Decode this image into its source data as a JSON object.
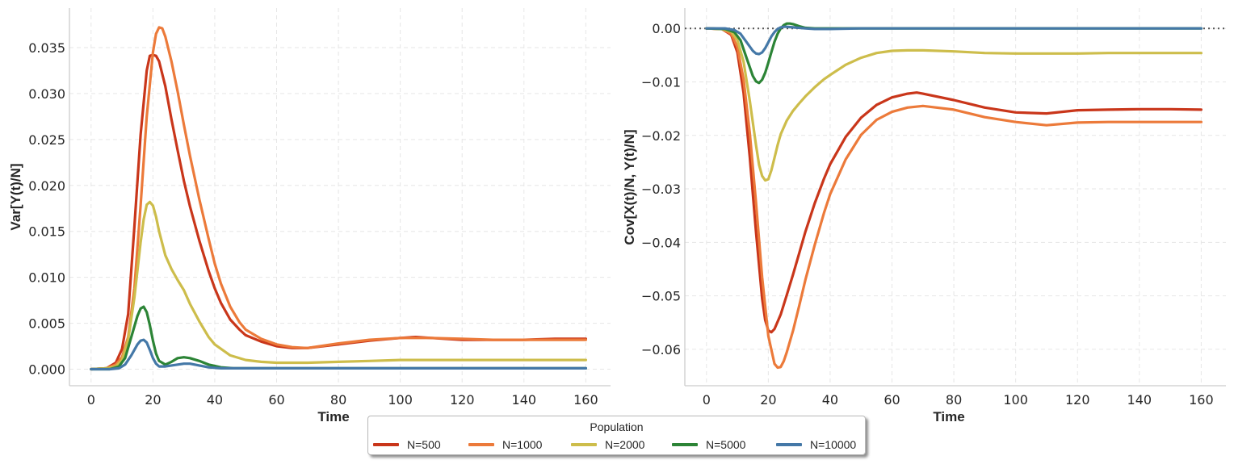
{
  "legend": {
    "title": "Population",
    "entries": [
      {
        "label": "N=500",
        "color": "#c9361a"
      },
      {
        "label": "N=1000",
        "color": "#ec7a3a"
      },
      {
        "label": "N=2000",
        "color": "#cdbd4b"
      },
      {
        "label": "N=5000",
        "color": "#2c8436"
      },
      {
        "label": "N=10000",
        "color": "#4478a7"
      }
    ]
  },
  "chart_data": [
    {
      "type": "line",
      "title": "",
      "xlabel": "Time",
      "ylabel": "Var[Y(t)/N]",
      "xlim": [
        -7,
        168
      ],
      "ylim": [
        -0.0018,
        0.0393
      ],
      "xticks": [
        0,
        20,
        40,
        60,
        80,
        100,
        120,
        140,
        160
      ],
      "xtick_labels": [
        "0",
        "20",
        "40",
        "60",
        "80",
        "100",
        "120",
        "140",
        "160"
      ],
      "yticks": [
        0,
        0.005,
        0.01,
        0.015,
        0.02,
        0.025,
        0.03,
        0.035
      ],
      "ytick_labels": [
        "0.000",
        "0.005",
        "0.010",
        "0.015",
        "0.020",
        "0.025",
        "0.030",
        "0.035"
      ],
      "grid": true,
      "series": [
        {
          "name": "N=500",
          "color": "#c9361a",
          "x": [
            0,
            5,
            8,
            10,
            12,
            14,
            16,
            18,
            19,
            20,
            21,
            22,
            24,
            26,
            28,
            30,
            32,
            35,
            38,
            40,
            42,
            45,
            48,
            50,
            55,
            60,
            65,
            70,
            80,
            90,
            100,
            105,
            110,
            120,
            130,
            140,
            150,
            160
          ],
          "y": [
            0,
            0.0001,
            0.0007,
            0.0022,
            0.006,
            0.0155,
            0.0255,
            0.0325,
            0.0341,
            0.0342,
            0.0341,
            0.0335,
            0.0308,
            0.0272,
            0.0238,
            0.0205,
            0.0177,
            0.014,
            0.0107,
            0.0088,
            0.0072,
            0.0054,
            0.0043,
            0.0037,
            0.003,
            0.0025,
            0.0023,
            0.0023,
            0.0027,
            0.0031,
            0.0034,
            0.0035,
            0.0034,
            0.0032,
            0.0032,
            0.0032,
            0.0033,
            0.0033
          ]
        },
        {
          "name": "N=1000",
          "color": "#ec7a3a",
          "x": [
            0,
            5,
            8,
            10,
            12,
            14,
            16,
            18,
            20,
            21,
            22,
            23,
            24,
            26,
            28,
            30,
            32,
            35,
            38,
            40,
            42,
            45,
            48,
            50,
            55,
            60,
            65,
            70,
            80,
            90,
            100,
            110,
            120,
            130,
            140,
            150,
            160
          ],
          "y": [
            0,
            0.0001,
            0.0005,
            0.0013,
            0.0035,
            0.0088,
            0.0178,
            0.0275,
            0.0345,
            0.0365,
            0.0372,
            0.0371,
            0.0362,
            0.0335,
            0.0302,
            0.0266,
            0.0232,
            0.0185,
            0.0142,
            0.0115,
            0.0093,
            0.0068,
            0.0051,
            0.0043,
            0.0033,
            0.0027,
            0.0024,
            0.0023,
            0.0028,
            0.0032,
            0.0034,
            0.0034,
            0.0033,
            0.0032,
            0.0032,
            0.0032,
            0.0032
          ]
        },
        {
          "name": "N=2000",
          "color": "#cdbd4b",
          "x": [
            0,
            5,
            8,
            10,
            12,
            14,
            16,
            17,
            18,
            19,
            20,
            21,
            22,
            24,
            26,
            28,
            30,
            32,
            35,
            38,
            40,
            45,
            50,
            55,
            60,
            70,
            80,
            90,
            100,
            110,
            120,
            130,
            140,
            150,
            160
          ],
          "y": [
            0,
            0.0001,
            0.0003,
            0.001,
            0.0032,
            0.0078,
            0.0138,
            0.0163,
            0.0179,
            0.0182,
            0.0178,
            0.0166,
            0.015,
            0.0124,
            0.0109,
            0.0097,
            0.0086,
            0.0071,
            0.0052,
            0.0035,
            0.0027,
            0.0015,
            0.001,
            0.0008,
            0.0007,
            0.0007,
            0.0008,
            0.0009,
            0.001,
            0.001,
            0.001,
            0.001,
            0.001,
            0.001,
            0.001
          ]
        },
        {
          "name": "N=5000",
          "color": "#2c8436",
          "x": [
            0,
            6,
            9,
            11,
            13,
            15,
            16,
            17,
            18,
            19,
            20,
            21,
            22,
            24,
            26,
            28,
            30,
            32,
            35,
            38,
            42,
            46,
            50,
            60,
            80,
            100,
            120,
            140,
            160
          ],
          "y": [
            0,
            0,
            0.0003,
            0.0012,
            0.0035,
            0.0058,
            0.0066,
            0.0068,
            0.0062,
            0.0048,
            0.0031,
            0.0017,
            0.0009,
            0.0005,
            0.0008,
            0.0012,
            0.0013,
            0.0012,
            0.0009,
            0.0005,
            0.0002,
            0.0001,
            0.0001,
            0.0001,
            0.0001,
            0.0001,
            0.0001,
            0.0001,
            0.0001
          ]
        },
        {
          "name": "N=10000",
          "color": "#4478a7",
          "x": [
            0,
            6,
            9,
            11,
            13,
            15,
            16,
            17,
            18,
            19,
            20,
            21,
            22,
            24,
            26,
            28,
            30,
            32,
            35,
            38,
            42,
            46,
            50,
            60,
            80,
            100,
            120,
            140,
            160
          ],
          "y": [
            0,
            0,
            0.0001,
            0.0005,
            0.0015,
            0.0027,
            0.0031,
            0.0032,
            0.0029,
            0.0021,
            0.0012,
            0.0006,
            0.0003,
            0.0003,
            0.0004,
            0.0005,
            0.0006,
            0.0006,
            0.0004,
            0.0002,
            0.0001,
            0.0001,
            0.0001,
            0.0001,
            0.0001,
            0.0001,
            0.0001,
            0.0001,
            0.0001
          ]
        }
      ]
    },
    {
      "type": "line",
      "title": "",
      "xlabel": "Time",
      "ylabel": "Cov[X(t)/N, Y(t)/N]",
      "xlim": [
        -7,
        168
      ],
      "ylim": [
        -0.0668,
        0.0038
      ],
      "xticks": [
        0,
        20,
        40,
        60,
        80,
        100,
        120,
        140,
        160
      ],
      "xtick_labels": [
        "0",
        "20",
        "40",
        "60",
        "80",
        "100",
        "120",
        "140",
        "160"
      ],
      "yticks": [
        0,
        -0.01,
        -0.02,
        -0.03,
        -0.04,
        -0.05,
        -0.06
      ],
      "ytick_labels": [
        "0.00",
        "−0.01",
        "−0.02",
        "−0.03",
        "−0.04",
        "−0.05",
        "−0.06"
      ],
      "grid": true,
      "reference_line": {
        "y": 0,
        "style": "dotted",
        "color": "#555555"
      },
      "series": [
        {
          "name": "N=500",
          "color": "#c9361a",
          "x": [
            0,
            5,
            8,
            10,
            12,
            14,
            16,
            18,
            19,
            20,
            21,
            22,
            24,
            26,
            28,
            30,
            32,
            35,
            38,
            40,
            45,
            50,
            55,
            60,
            65,
            68,
            70,
            80,
            90,
            100,
            110,
            120,
            130,
            140,
            150,
            160
          ],
          "y": [
            0,
            -0.0001,
            -0.0012,
            -0.0045,
            -0.012,
            -0.024,
            -0.038,
            -0.0505,
            -0.0545,
            -0.0565,
            -0.0568,
            -0.0562,
            -0.0535,
            -0.0498,
            -0.046,
            -0.042,
            -0.038,
            -0.0327,
            -0.0281,
            -0.0254,
            -0.0203,
            -0.0167,
            -0.0143,
            -0.0129,
            -0.0122,
            -0.012,
            -0.0122,
            -0.0134,
            -0.0148,
            -0.0157,
            -0.0159,
            -0.0153,
            -0.0152,
            -0.0151,
            -0.0151,
            -0.0152
          ]
        },
        {
          "name": "N=1000",
          "color": "#ec7a3a",
          "x": [
            0,
            5,
            8,
            10,
            12,
            14,
            16,
            18,
            20,
            22,
            23,
            24,
            25,
            26,
            28,
            30,
            32,
            35,
            38,
            40,
            45,
            50,
            55,
            60,
            65,
            70,
            80,
            90,
            100,
            110,
            120,
            130,
            140,
            150,
            160
          ],
          "y": [
            0,
            -0.0001,
            -0.001,
            -0.0035,
            -0.0095,
            -0.0195,
            -0.0325,
            -0.0465,
            -0.0575,
            -0.0627,
            -0.0634,
            -0.0633,
            -0.0622,
            -0.0605,
            -0.0565,
            -0.0518,
            -0.047,
            -0.0405,
            -0.0345,
            -0.031,
            -0.0245,
            -0.0199,
            -0.0171,
            -0.0156,
            -0.0148,
            -0.0145,
            -0.0152,
            -0.0166,
            -0.0175,
            -0.0181,
            -0.0176,
            -0.0175,
            -0.0175,
            -0.0175,
            -0.0175
          ]
        },
        {
          "name": "N=2000",
          "color": "#cdbd4b",
          "x": [
            0,
            5,
            8,
            10,
            12,
            14,
            16,
            17,
            18,
            19,
            20,
            21,
            22,
            23,
            24,
            26,
            28,
            30,
            32,
            35,
            38,
            40,
            45,
            50,
            55,
            60,
            65,
            70,
            80,
            90,
            100,
            110,
            120,
            130,
            140,
            150,
            160
          ],
          "y": [
            0,
            -0.0001,
            -0.0006,
            -0.0022,
            -0.0062,
            -0.0135,
            -0.0218,
            -0.0255,
            -0.0276,
            -0.0284,
            -0.0282,
            -0.0265,
            -0.0242,
            -0.0218,
            -0.0198,
            -0.0172,
            -0.0154,
            -0.014,
            -0.0127,
            -0.011,
            -0.0095,
            -0.0087,
            -0.0068,
            -0.0055,
            -0.0046,
            -0.0042,
            -0.0041,
            -0.0041,
            -0.0043,
            -0.0046,
            -0.0047,
            -0.0047,
            -0.0047,
            -0.0046,
            -0.0046,
            -0.0046,
            -0.0046
          ]
        },
        {
          "name": "N=5000",
          "color": "#2c8436",
          "x": [
            0,
            6,
            9,
            11,
            13,
            15,
            16,
            17,
            18,
            19,
            20,
            21,
            22,
            23,
            24,
            25,
            26,
            27,
            28,
            30,
            32,
            35,
            38,
            40,
            50,
            60,
            80,
            100,
            120,
            140,
            160
          ],
          "y": [
            0,
            -0.0001,
            -0.0007,
            -0.0022,
            -0.0056,
            -0.0089,
            -0.0099,
            -0.0102,
            -0.0096,
            -0.0083,
            -0.0064,
            -0.0044,
            -0.0025,
            -0.001,
            0,
            0.0006,
            0.0009,
            0.0009,
            0.0008,
            0.0004,
            0.0001,
            0,
            0,
            0,
            0,
            0,
            0,
            0,
            0,
            0,
            0
          ]
        },
        {
          "name": "N=10000",
          "color": "#4478a7",
          "x": [
            0,
            6,
            9,
            11,
            13,
            15,
            16,
            17,
            18,
            19,
            20,
            21,
            22,
            23,
            24,
            25,
            26,
            28,
            30,
            32,
            35,
            40,
            50,
            60,
            80,
            100,
            120,
            140,
            160
          ],
          "y": [
            0,
            0,
            -0.0003,
            -0.001,
            -0.0026,
            -0.0042,
            -0.0047,
            -0.0048,
            -0.0045,
            -0.0037,
            -0.0026,
            -0.0015,
            -0.0007,
            -0.0001,
            0.0002,
            0.0003,
            0.0003,
            0.0002,
            0.0001,
            0,
            -0.0001,
            -0.0001,
            0,
            0,
            0,
            0,
            0,
            0,
            0
          ]
        }
      ]
    }
  ]
}
